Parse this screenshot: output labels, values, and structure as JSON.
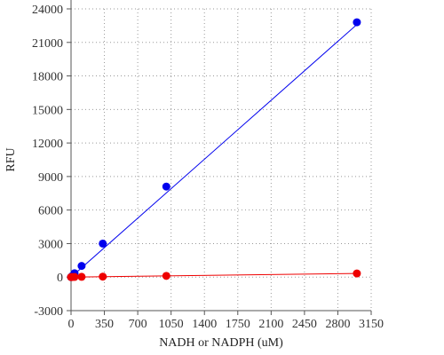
{
  "chart_data": {
    "type": "scatter",
    "title": "",
    "xlabel": "NADH or NADPH (uM)",
    "ylabel": "RFU",
    "xlim": [
      0,
      3150
    ],
    "ylim": [
      -3000,
      24000
    ],
    "xticks": [
      0,
      350,
      700,
      1050,
      1400,
      1750,
      2100,
      2450,
      2800,
      3150
    ],
    "yticks": [
      -3000,
      0,
      3000,
      6000,
      9000,
      12000,
      15000,
      18000,
      21000,
      24000
    ],
    "grid": true,
    "legend": "none",
    "series": [
      {
        "color": "#0000ee",
        "x": [
          0,
          12.3,
          37,
          111,
          333,
          1000,
          3000
        ],
        "y": [
          0,
          100,
          350,
          1000,
          3000,
          8100,
          22800
        ],
        "fit": {
          "x": [
            0,
            3000
          ],
          "y": [
            0,
            22600
          ]
        }
      },
      {
        "color": "#ee0000",
        "x": [
          0,
          12.3,
          37,
          111,
          333,
          1000,
          3000
        ],
        "y": [
          0,
          5,
          15,
          25,
          40,
          110,
          330
        ],
        "fit": {
          "x": [
            0,
            3000
          ],
          "y": [
            0,
            330
          ]
        }
      }
    ]
  }
}
